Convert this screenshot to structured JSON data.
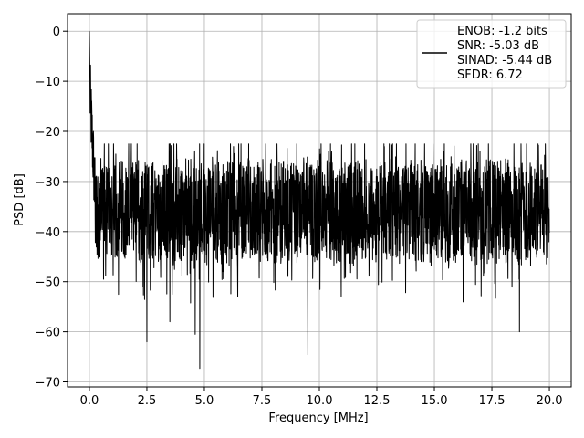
{
  "chart_data": {
    "type": "line",
    "title": "",
    "xlabel": "Frequency [MHz]",
    "ylabel": "PSD [dB]",
    "xlim": [
      -0.95,
      20.95
    ],
    "ylim": [
      -71,
      3.5
    ],
    "xticks": [
      0.0,
      2.5,
      5.0,
      7.5,
      10.0,
      12.5,
      15.0,
      17.5,
      20.0
    ],
    "xtick_labels": [
      "0.0",
      "2.5",
      "5.0",
      "7.5",
      "10.0",
      "12.5",
      "15.0",
      "17.5",
      "20.0"
    ],
    "yticks": [
      0,
      -10,
      -20,
      -30,
      -40,
      -50,
      -60,
      -70
    ],
    "ytick_labels": [
      "0",
      "−10",
      "−20",
      "−30",
      "−40",
      "−50",
      "−60",
      "−70"
    ],
    "grid": true,
    "legend_position": "top-right",
    "line_color": "#000000",
    "series": [
      {
        "legend_lines": [
          "ENOB: -1.2 bits",
          "SNR: -5.03 dB",
          "SINAD: -5.44 dB",
          "SFDR: 6.72"
        ],
        "x_range": [
          0,
          20
        ],
        "peak": {
          "x": 0.0,
          "y": 0
        },
        "noise_floor_band": [
          -50,
          -25
        ],
        "dips": [
          {
            "x": 2.5,
            "y": -62
          },
          {
            "x": 4.8,
            "y": -67.3
          },
          {
            "x": 4.6,
            "y": -60.5
          },
          {
            "x": 9.5,
            "y": -64.6
          },
          {
            "x": 3.5,
            "y": -58
          },
          {
            "x": 18.7,
            "y": -60
          }
        ]
      }
    ]
  }
}
